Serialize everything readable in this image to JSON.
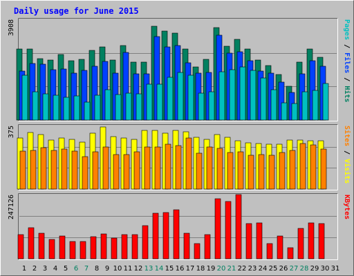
{
  "chart_data": {
    "type": "bar",
    "title": "Daily usage for June 2015",
    "categories": [
      "1",
      "2",
      "3",
      "4",
      "5",
      "6",
      "7",
      "8",
      "9",
      "10",
      "11",
      "12",
      "13",
      "14",
      "15",
      "16",
      "17",
      "18",
      "19",
      "20",
      "21",
      "22",
      "23",
      "24",
      "25",
      "26",
      "27",
      "28",
      "29",
      "30",
      "31"
    ],
    "weekend_days": [
      "6",
      "7",
      "13",
      "14",
      "20",
      "21",
      "27",
      "28"
    ],
    "panels": [
      {
        "ymax_label": "3908",
        "ymax": 3908,
        "right_labels": [
          {
            "text": "Pages",
            "color": "#00c0c0"
          },
          {
            "text": " / ",
            "color": "#000000"
          },
          {
            "text": "Files",
            "color": "#0040ff"
          },
          {
            "text": " / ",
            "color": "#000000"
          },
          {
            "text": "Hits",
            "color": "#008060"
          }
        ],
        "series": [
          {
            "name": "Hits",
            "color": "#008060",
            "values": [
              2760,
              2760,
              2380,
              2330,
              2530,
              2300,
              2360,
              2700,
              2840,
              2330,
              2880,
              2240,
              2240,
              3650,
              3460,
              3360,
              2760,
              2060,
              2360,
              3600,
              2870,
              3120,
              2770,
              2330,
              2120,
              1780,
              1310,
              2260,
              2760,
              2440,
              null
            ]
          },
          {
            "name": "Files",
            "color": "#0040ff",
            "values": [
              1900,
              2200,
              2160,
              1960,
              1970,
              1810,
              1930,
              2090,
              2280,
              1810,
              2620,
              1790,
              1790,
              3240,
              2850,
              2900,
              2230,
              1810,
              1840,
              3300,
              2590,
              2640,
              2290,
              1910,
              1810,
              1460,
              1070,
              1790,
              2290,
              2080,
              null
            ]
          },
          {
            "name": "Pages",
            "color": "#00c0c0",
            "values": [
              1750,
              1100,
              1020,
              960,
              890,
              930,
              690,
              960,
              1180,
              1000,
              1040,
              1010,
              1390,
              1390,
              1650,
              1860,
              1730,
              1040,
              1110,
              1880,
              1950,
              2060,
              1920,
              1620,
              1190,
              660,
              640,
              1110,
              1150,
              1420,
              null
            ]
          }
        ]
      },
      {
        "ymax_label": "375",
        "ymax": 375,
        "right_labels": [
          {
            "text": "Sites",
            "color": "#ff8000"
          },
          {
            "text": " / ",
            "color": "#000000"
          },
          {
            "text": "Visits",
            "color": "#ffff00"
          }
        ],
        "series": [
          {
            "name": "Visits",
            "color": "#ffff00",
            "values": [
              300,
              335,
              320,
              290,
              300,
              292,
              278,
              330,
              365,
              310,
              300,
              295,
              345,
              345,
              330,
              345,
              340,
              305,
              295,
              320,
              305,
              285,
              275,
              270,
              265,
              265,
              290,
              290,
              285,
              285,
              null
            ]
          },
          {
            "name": "Sites",
            "color": "#ff8000",
            "values": [
              225,
              230,
              245,
              230,
              235,
              225,
              190,
              220,
              250,
              205,
              205,
              222,
              250,
              250,
              265,
              255,
              300,
              210,
              250,
              240,
              218,
              222,
              200,
              205,
              200,
              215,
              230,
              270,
              260,
              235,
              null
            ]
          }
        ]
      },
      {
        "ymax_label": "247126",
        "ymax": 247126,
        "right_labels": [
          {
            "text": "KBytes",
            "color": "#ff0000"
          }
        ],
        "series": [
          {
            "name": "KBytes",
            "color": "#ff0000",
            "values": [
              92600,
              119300,
              97800,
              74200,
              88200,
              65300,
              67000,
              84100,
              95100,
              79500,
              92300,
              93500,
              126800,
              175700,
              177600,
              188600,
              98700,
              59300,
              93500,
              232200,
              219800,
              247100,
              135700,
              138000,
              59300,
              87300,
              42600,
              117000,
              137400,
              136400,
              null
            ]
          }
        ]
      }
    ],
    "colors": {
      "background": "#c0c0c0",
      "panel_bg": "#c0c0c0",
      "title": "#0000ff",
      "weekend_label": "#008060",
      "weekday_label": "#000000",
      "grid": "#808080"
    }
  }
}
